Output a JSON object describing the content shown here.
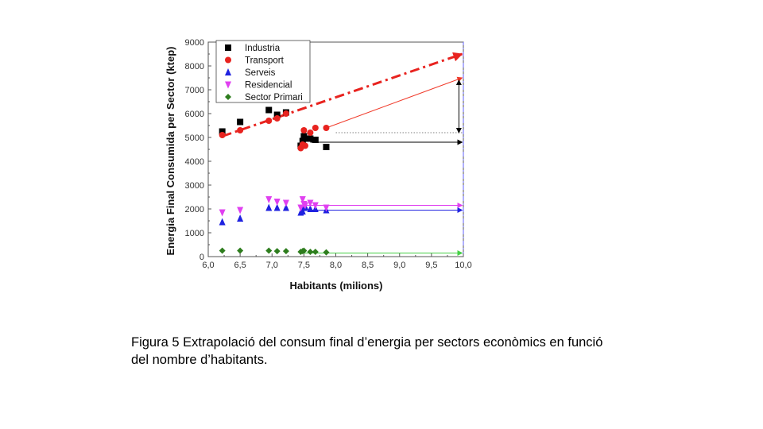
{
  "chart_data": {
    "type": "scatter",
    "xlabel": "Habitants (milions)",
    "ylabel": "Energia Final Consumida per Sector (ktep)",
    "xlim": [
      6.0,
      10.0
    ],
    "ylim": [
      0,
      9000
    ],
    "xticks": [
      "6,0",
      "6,5",
      "7,0",
      "7,5",
      "8,0",
      "8,5",
      "9,0",
      "9,5",
      "10,0"
    ],
    "yticks": [
      "0",
      "1000",
      "2000",
      "3000",
      "4000",
      "5000",
      "6000",
      "7000",
      "8000",
      "9000"
    ],
    "series": [
      {
        "name": "Industria",
        "color": "#000000",
        "marker": "square",
        "points": [
          [
            6.22,
            5250
          ],
          [
            6.5,
            5650
          ],
          [
            6.95,
            6150
          ],
          [
            7.08,
            5950
          ],
          [
            7.22,
            6050
          ],
          [
            7.45,
            4650
          ],
          [
            7.48,
            4850
          ],
          [
            7.5,
            5050
          ],
          [
            7.52,
            4950
          ],
          [
            7.6,
            4950
          ],
          [
            7.68,
            4900
          ],
          [
            7.85,
            4600
          ]
        ]
      },
      {
        "name": "Transport",
        "color": "#e8231f",
        "marker": "circle",
        "points": [
          [
            6.22,
            5100
          ],
          [
            6.5,
            5300
          ],
          [
            6.95,
            5700
          ],
          [
            7.08,
            5800
          ],
          [
            7.22,
            6000
          ],
          [
            7.45,
            4550
          ],
          [
            7.48,
            4700
          ],
          [
            7.5,
            5300
          ],
          [
            7.52,
            4650
          ],
          [
            7.6,
            5200
          ],
          [
            7.68,
            5400
          ],
          [
            7.85,
            5400
          ]
        ]
      },
      {
        "name": "Serveis",
        "color": "#1f22e0",
        "marker": "triangle-up",
        "points": [
          [
            6.22,
            1450
          ],
          [
            6.5,
            1600
          ],
          [
            6.95,
            2050
          ],
          [
            7.08,
            2050
          ],
          [
            7.22,
            2050
          ],
          [
            7.45,
            1850
          ],
          [
            7.48,
            1900
          ],
          [
            7.5,
            2050
          ],
          [
            7.52,
            2100
          ],
          [
            7.6,
            2000
          ],
          [
            7.68,
            2000
          ],
          [
            7.85,
            1950
          ]
        ]
      },
      {
        "name": "Residencial",
        "color": "#e040f0",
        "marker": "triangle-down",
        "points": [
          [
            6.22,
            1850
          ],
          [
            6.5,
            1950
          ],
          [
            6.95,
            2400
          ],
          [
            7.08,
            2300
          ],
          [
            7.22,
            2250
          ],
          [
            7.45,
            2050
          ],
          [
            7.48,
            2400
          ],
          [
            7.5,
            2200
          ],
          [
            7.52,
            2150
          ],
          [
            7.6,
            2250
          ],
          [
            7.68,
            2150
          ],
          [
            7.85,
            2050
          ]
        ]
      },
      {
        "name": "Sector Primari",
        "color": "#2e7d1e",
        "marker": "diamond",
        "points": [
          [
            6.22,
            250
          ],
          [
            6.5,
            250
          ],
          [
            6.95,
            250
          ],
          [
            7.08,
            230
          ],
          [
            7.22,
            230
          ],
          [
            7.45,
            200
          ],
          [
            7.48,
            230
          ],
          [
            7.5,
            250
          ],
          [
            7.6,
            200
          ],
          [
            7.68,
            200
          ],
          [
            7.85,
            180
          ]
        ]
      }
    ],
    "lines": [
      {
        "name": "extrapolacio-transport-tendencia",
        "color": "#e8231f",
        "style": "dashdot",
        "from": [
          6.22,
          5050
        ],
        "to": [
          9.98,
          8500
        ]
      },
      {
        "name": "extrapolacio-transport",
        "color": "#f03a2a",
        "style": "solid",
        "from": [
          7.85,
          5400
        ],
        "to": [
          9.98,
          7500
        ]
      },
      {
        "name": "extrapolacio-industria",
        "color": "#000000",
        "style": "solid",
        "from": [
          7.6,
          4800
        ],
        "to": [
          9.98,
          4800
        ]
      },
      {
        "name": "extrapolacio-residencial",
        "color": "#e040f0",
        "style": "solid",
        "from": [
          7.5,
          2150
        ],
        "to": [
          9.98,
          2150
        ]
      },
      {
        "name": "extrapolacio-serveis",
        "color": "#1f22e0",
        "style": "solid",
        "from": [
          7.5,
          1950
        ],
        "to": [
          9.98,
          1950
        ]
      },
      {
        "name": "extrapolacio-sector-primari",
        "color": "#44d044",
        "style": "solid",
        "from": [
          7.5,
          150
        ],
        "to": [
          9.98,
          150
        ]
      },
      {
        "name": "referencia-5200",
        "color": "#555555",
        "style": "dotted",
        "from": [
          8.0,
          5200
        ],
        "to": [
          10.0,
          5200
        ]
      },
      {
        "name": "limit-10-milions",
        "color": "#6060ff",
        "style": "dashdot",
        "from": [
          10.0,
          0
        ],
        "to": [
          10.0,
          9000
        ]
      }
    ],
    "arrow_range": {
      "x": 9.93,
      "from": 5200,
      "to": 7400
    },
    "legend_position": "top-left"
  },
  "caption": {
    "line1": "Figura 5 Extrapolació del consum final d’energia per sectors econòmics en funció",
    "line2": "del nombre d’habitants."
  }
}
